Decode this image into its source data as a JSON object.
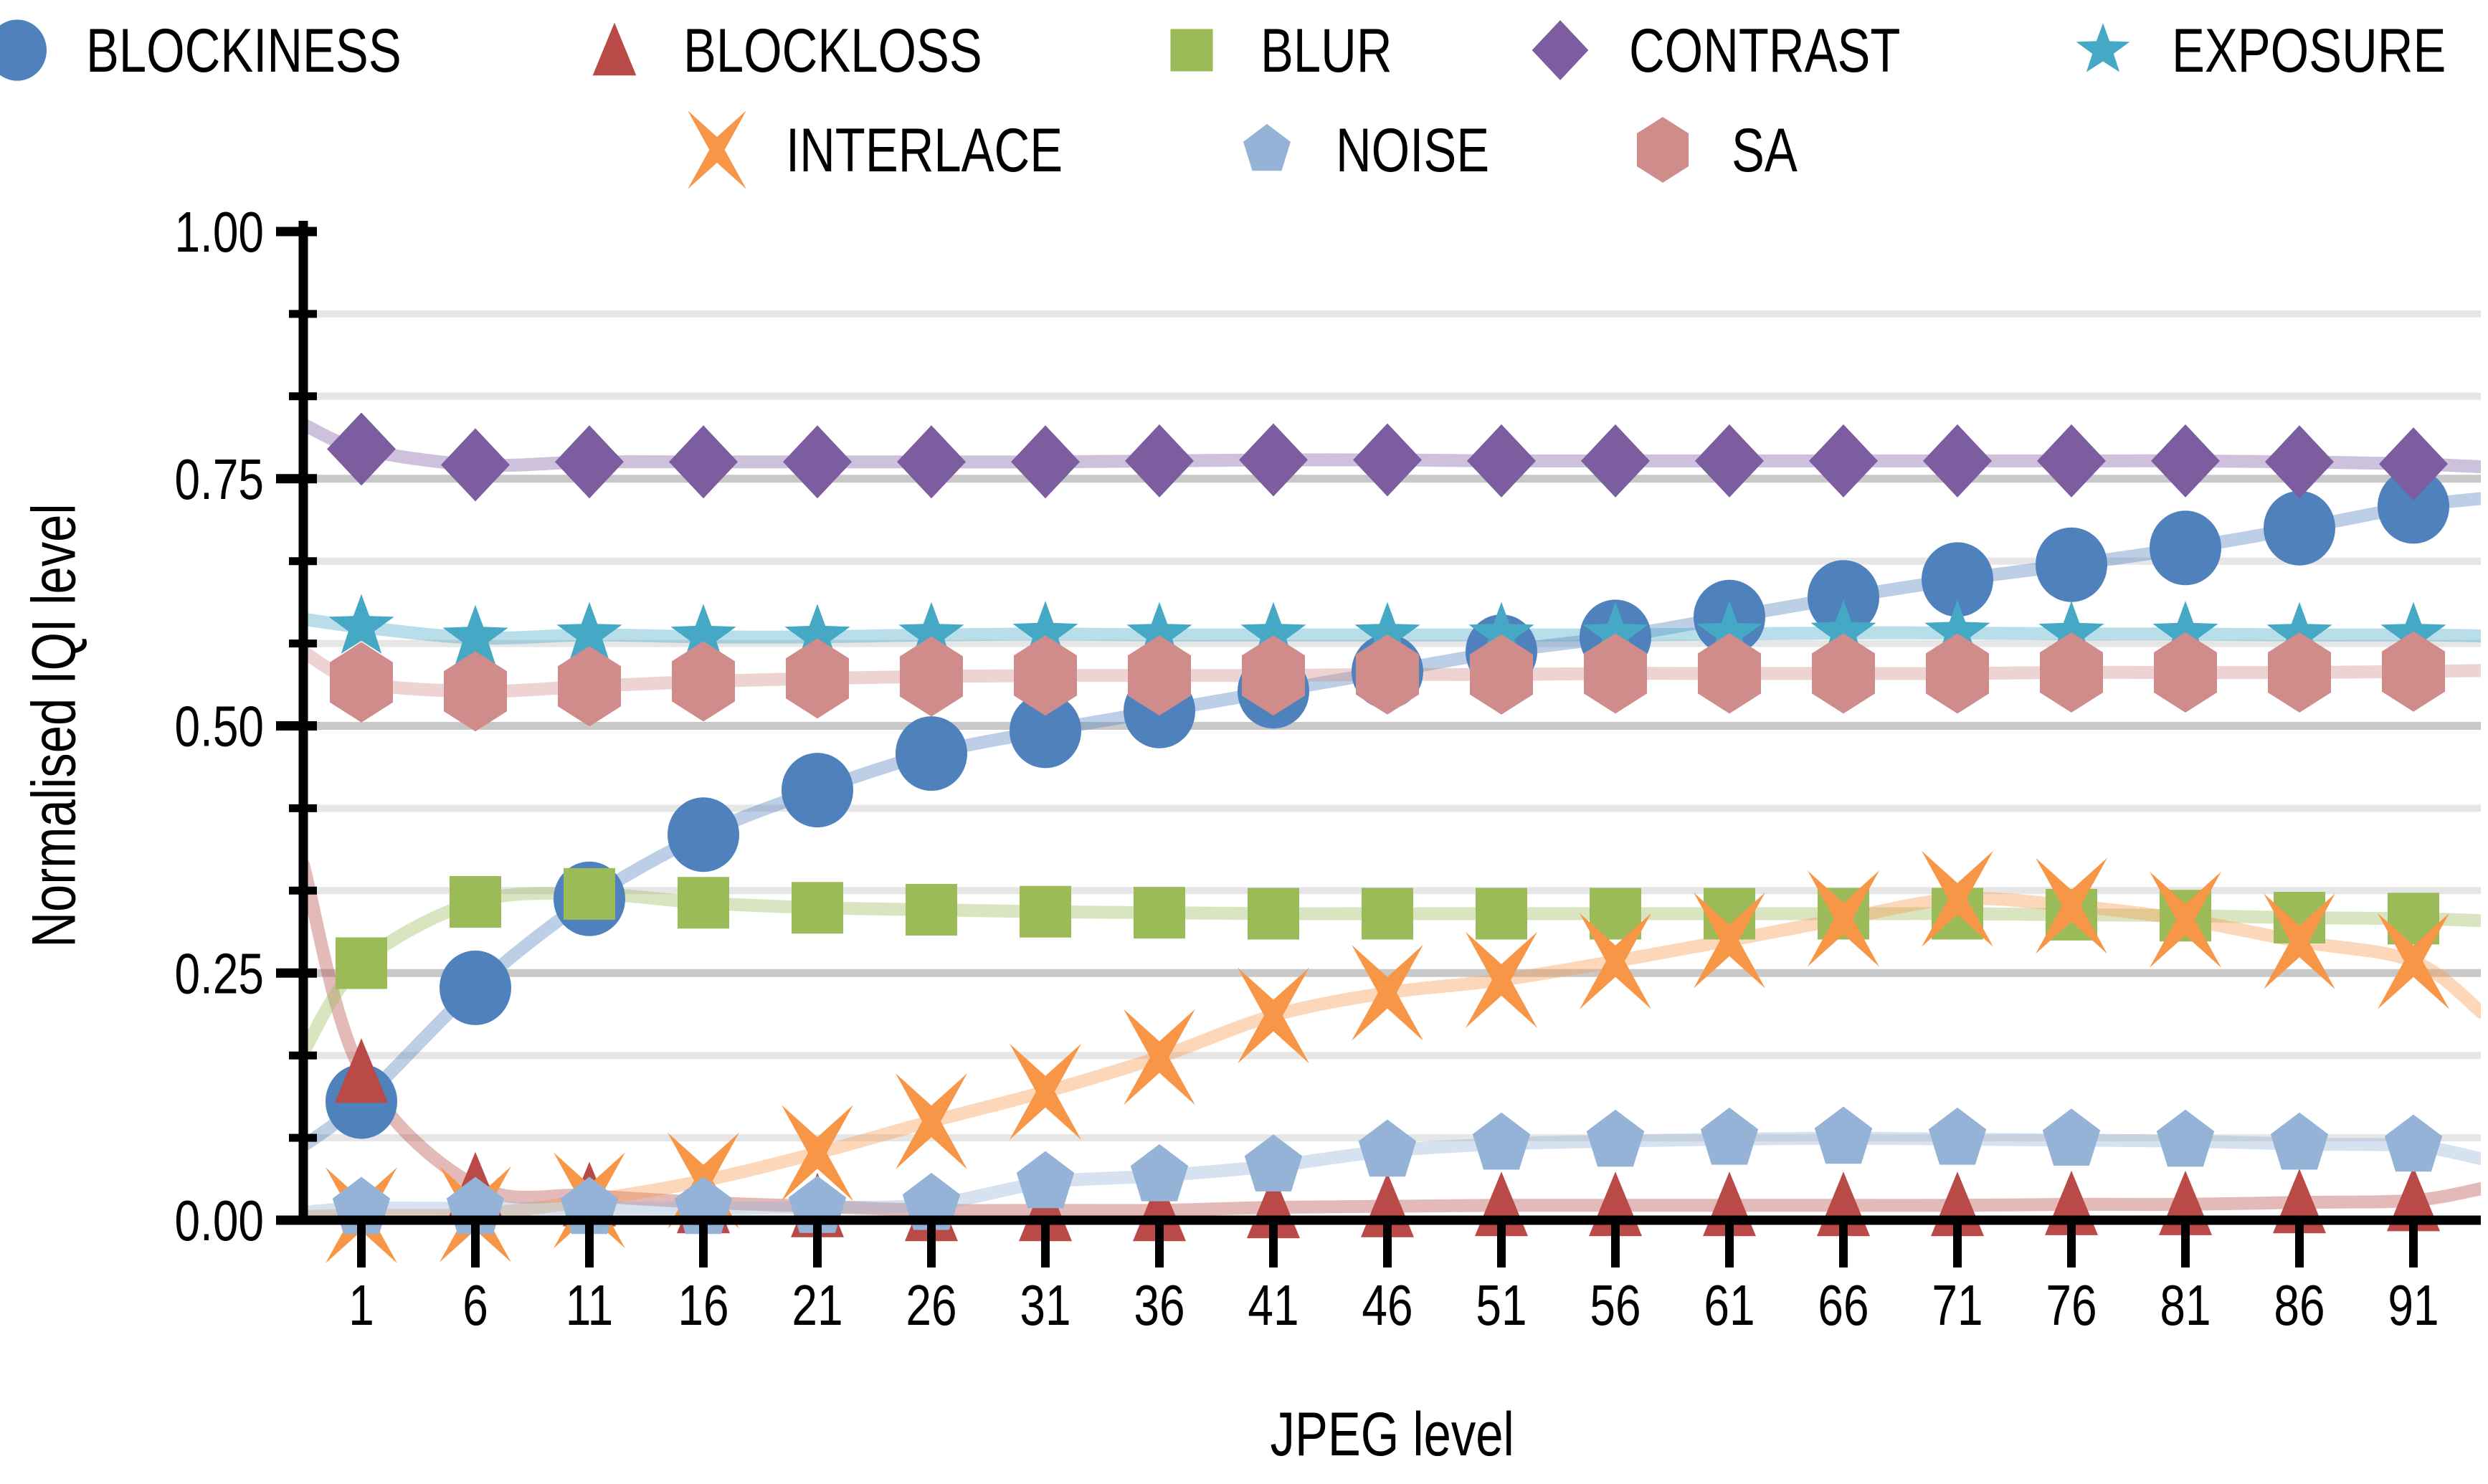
{
  "chart_data": {
    "type": "scatter",
    "title": "",
    "xlabel": "JPEG level",
    "ylabel": "Normalised IQI level",
    "x": [
      1,
      6,
      11,
      16,
      21,
      26,
      31,
      36,
      41,
      46,
      51,
      56,
      61,
      66,
      71,
      76,
      81,
      86,
      91
    ],
    "x_tick_labels": [
      "1",
      "6",
      "11",
      "16",
      "21",
      "26",
      "31",
      "36",
      "41",
      "46",
      "51",
      "56",
      "61",
      "66",
      "71",
      "76",
      "81",
      "86",
      "91"
    ],
    "xlim": [
      -1.55,
      94
    ],
    "ylim": [
      0,
      1
    ],
    "y_tick_labels": [
      "0.00",
      "0.25",
      "0.50",
      "0.75",
      "1.00"
    ],
    "y_major_ticks": [
      0,
      0.25,
      0.5,
      0.75,
      1.0
    ],
    "y_minor_step": 0.0833,
    "grid": "horizontal",
    "legend_position": "top",
    "legend_rows": [
      [
        "BLOCKINESS",
        "BLOCKLOSS",
        "BLUR",
        "CONTRAST",
        "EXPOSURE"
      ],
      [
        "INTERLACE",
        "NOISE",
        "SA"
      ]
    ],
    "series": [
      {
        "name": "BLOCKINESS",
        "marker": "circle",
        "color": "#4f81bd",
        "values": [
          0.12,
          0.235,
          0.325,
          0.39,
          0.435,
          0.472,
          0.495,
          0.515,
          0.535,
          0.555,
          0.575,
          0.59,
          0.61,
          0.63,
          0.648,
          0.663,
          0.68,
          0.7,
          0.722
        ],
        "edge_start": 0.075,
        "edge_end": 0.73
      },
      {
        "name": "BLOCKLOSS",
        "marker": "triangle-up",
        "color": "#b94a48",
        "values": [
          0.15,
          0.035,
          0.025,
          0.018,
          0.014,
          0.01,
          0.01,
          0.01,
          0.013,
          0.014,
          0.015,
          0.015,
          0.015,
          0.015,
          0.015,
          0.016,
          0.016,
          0.018,
          0.02
        ],
        "edge_start": 0.36,
        "edge_end": 0.032
      },
      {
        "name": "BLUR",
        "marker": "square",
        "color": "#9bbb59",
        "values": [
          0.26,
          0.322,
          0.33,
          0.321,
          0.316,
          0.314,
          0.312,
          0.311,
          0.31,
          0.31,
          0.31,
          0.31,
          0.31,
          0.31,
          0.31,
          0.309,
          0.308,
          0.306,
          0.305
        ],
        "edge_start": 0.17,
        "edge_end": 0.303
      },
      {
        "name": "CONTRAST",
        "marker": "diamond",
        "color": "#7c5da0",
        "values": [
          0.78,
          0.764,
          0.767,
          0.767,
          0.767,
          0.767,
          0.767,
          0.768,
          0.769,
          0.769,
          0.768,
          0.768,
          0.768,
          0.768,
          0.768,
          0.768,
          0.768,
          0.767,
          0.765
        ],
        "edge_start": 0.805,
        "edge_end": 0.762
      },
      {
        "name": "EXPOSURE",
        "marker": "star",
        "color": "#45a8c5",
        "values": [
          0.6,
          0.589,
          0.592,
          0.59,
          0.59,
          0.592,
          0.593,
          0.592,
          0.592,
          0.592,
          0.592,
          0.592,
          0.593,
          0.594,
          0.594,
          0.593,
          0.593,
          0.592,
          0.592
        ],
        "edge_start": 0.608,
        "edge_end": 0.591
      },
      {
        "name": "INTERLACE",
        "marker": "x",
        "color": "#f79646",
        "values": [
          0.005,
          0.006,
          0.02,
          0.04,
          0.068,
          0.1,
          0.13,
          0.165,
          0.207,
          0.23,
          0.243,
          0.262,
          0.283,
          0.305,
          0.325,
          0.318,
          0.304,
          0.282,
          0.262
        ],
        "edge_start": 0.004,
        "edge_end": 0.21
      },
      {
        "name": "NOISE",
        "marker": "pentagon",
        "color": "#95b3d7",
        "values": [
          0.012,
          0.012,
          0.012,
          0.012,
          0.013,
          0.016,
          0.038,
          0.045,
          0.055,
          0.07,
          0.077,
          0.08,
          0.082,
          0.083,
          0.082,
          0.081,
          0.08,
          0.077,
          0.075
        ],
        "edge_start": 0.008,
        "edge_end": 0.062
      },
      {
        "name": "SA",
        "marker": "hexagon",
        "color": "#d08c8a",
        "values": [
          0.544,
          0.535,
          0.54,
          0.545,
          0.548,
          0.55,
          0.551,
          0.551,
          0.551,
          0.552,
          0.552,
          0.553,
          0.553,
          0.553,
          0.553,
          0.554,
          0.554,
          0.554,
          0.555
        ],
        "edge_start": 0.575,
        "edge_end": 0.556
      }
    ],
    "style": {
      "minor_grid_color": "#e6e6e6",
      "major_grid_color": "#c8c8c8",
      "axis_color": "#000000",
      "line_opacity": 0.38
    }
  }
}
